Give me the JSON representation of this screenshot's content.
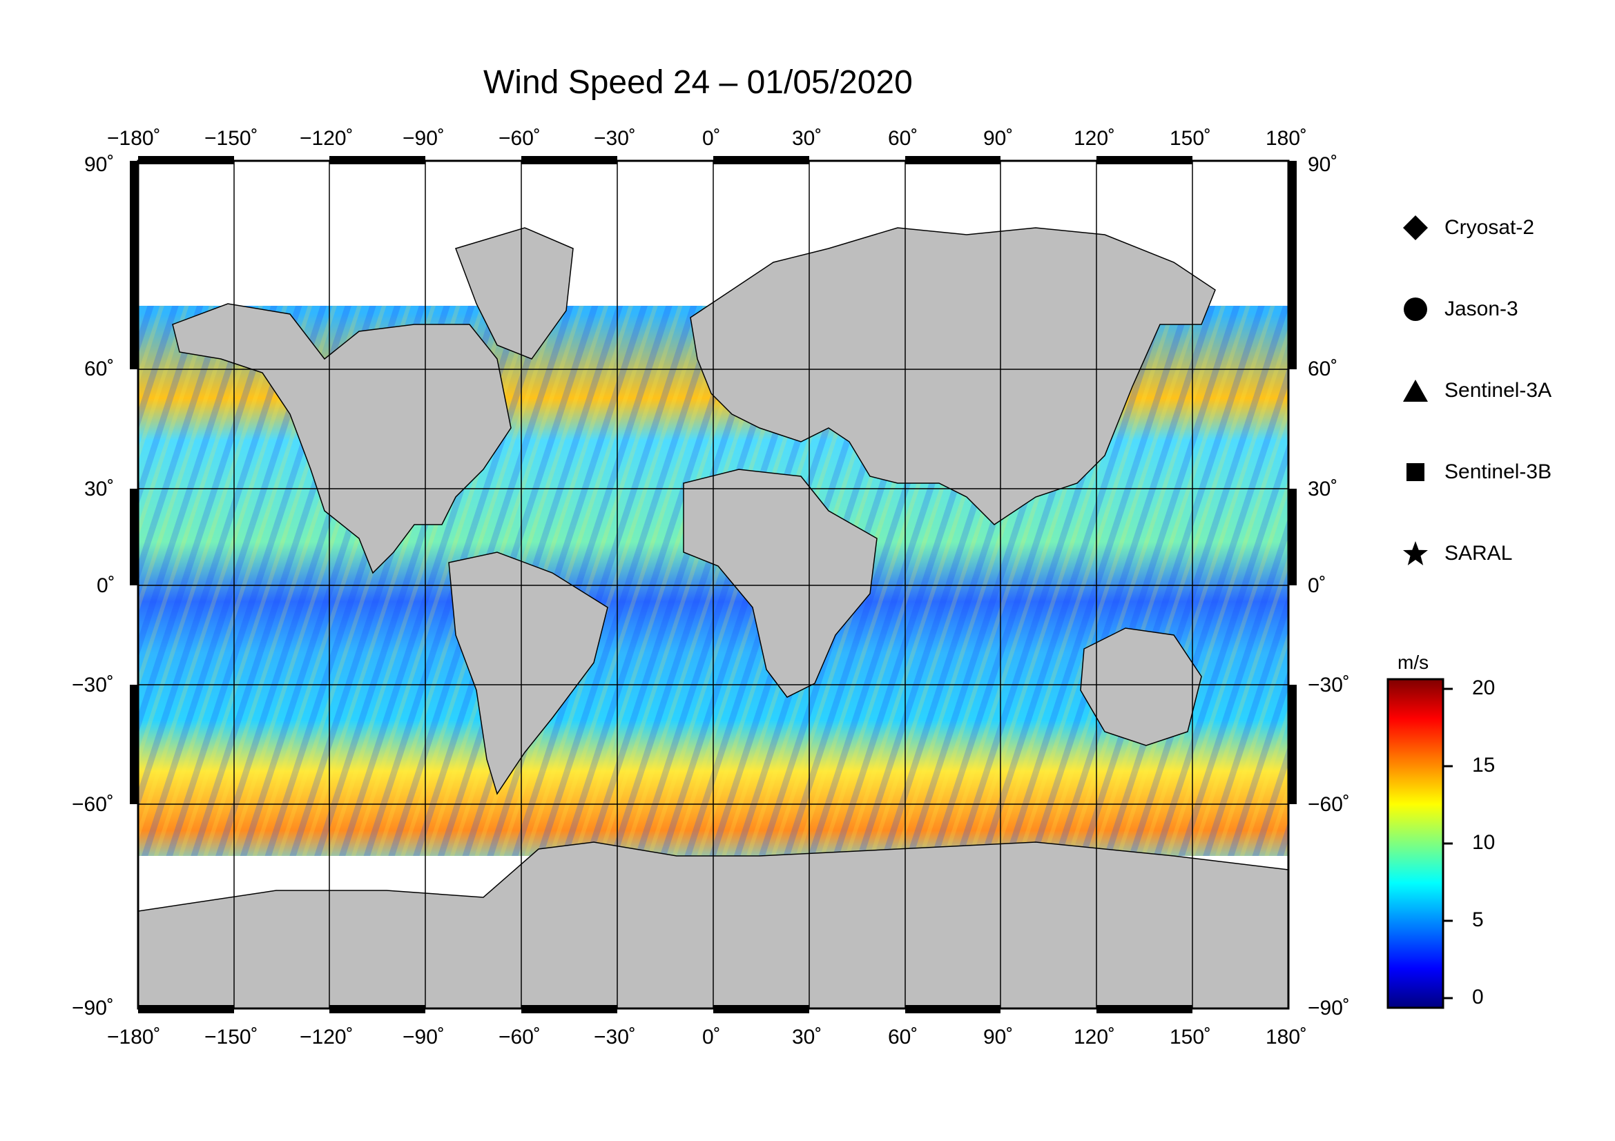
{
  "title": "Wind Speed 24 – 01/05/2020",
  "longitude_ticks": [
    "−180˚",
    "−150˚",
    "−120˚",
    "−90˚",
    "−60˚",
    "−30˚",
    "0˚",
    "30˚",
    "60˚",
    "90˚",
    "120˚",
    "150˚",
    "180˚"
  ],
  "latitude_ticks": [
    "90˚",
    "60˚",
    "30˚",
    "0˚",
    "−30˚",
    "−60˚",
    "−90˚"
  ],
  "legend": {
    "items": [
      {
        "symbol": "diamond-icon",
        "label": "Cryosat-2"
      },
      {
        "symbol": "circle-icon",
        "label": "Jason-3"
      },
      {
        "symbol": "triangle-icon",
        "label": "Sentinel-3A"
      },
      {
        "symbol": "square-icon",
        "label": "Sentinel-3B"
      },
      {
        "symbol": "star-icon",
        "label": "SARAL"
      }
    ]
  },
  "colorbar": {
    "unit": "m/s",
    "ticks": [
      "20",
      "15",
      "10",
      "5",
      "0"
    ],
    "range": [
      0,
      21
    ],
    "colors": [
      "#00007f",
      "#0000ff",
      "#007fff",
      "#00ffff",
      "#7fff7f",
      "#ffff00",
      "#ff7f00",
      "#ff0000",
      "#7f0000"
    ]
  },
  "colors": {
    "land": "#bebebe",
    "ice": "#ffffff",
    "frame": "#000000"
  }
}
